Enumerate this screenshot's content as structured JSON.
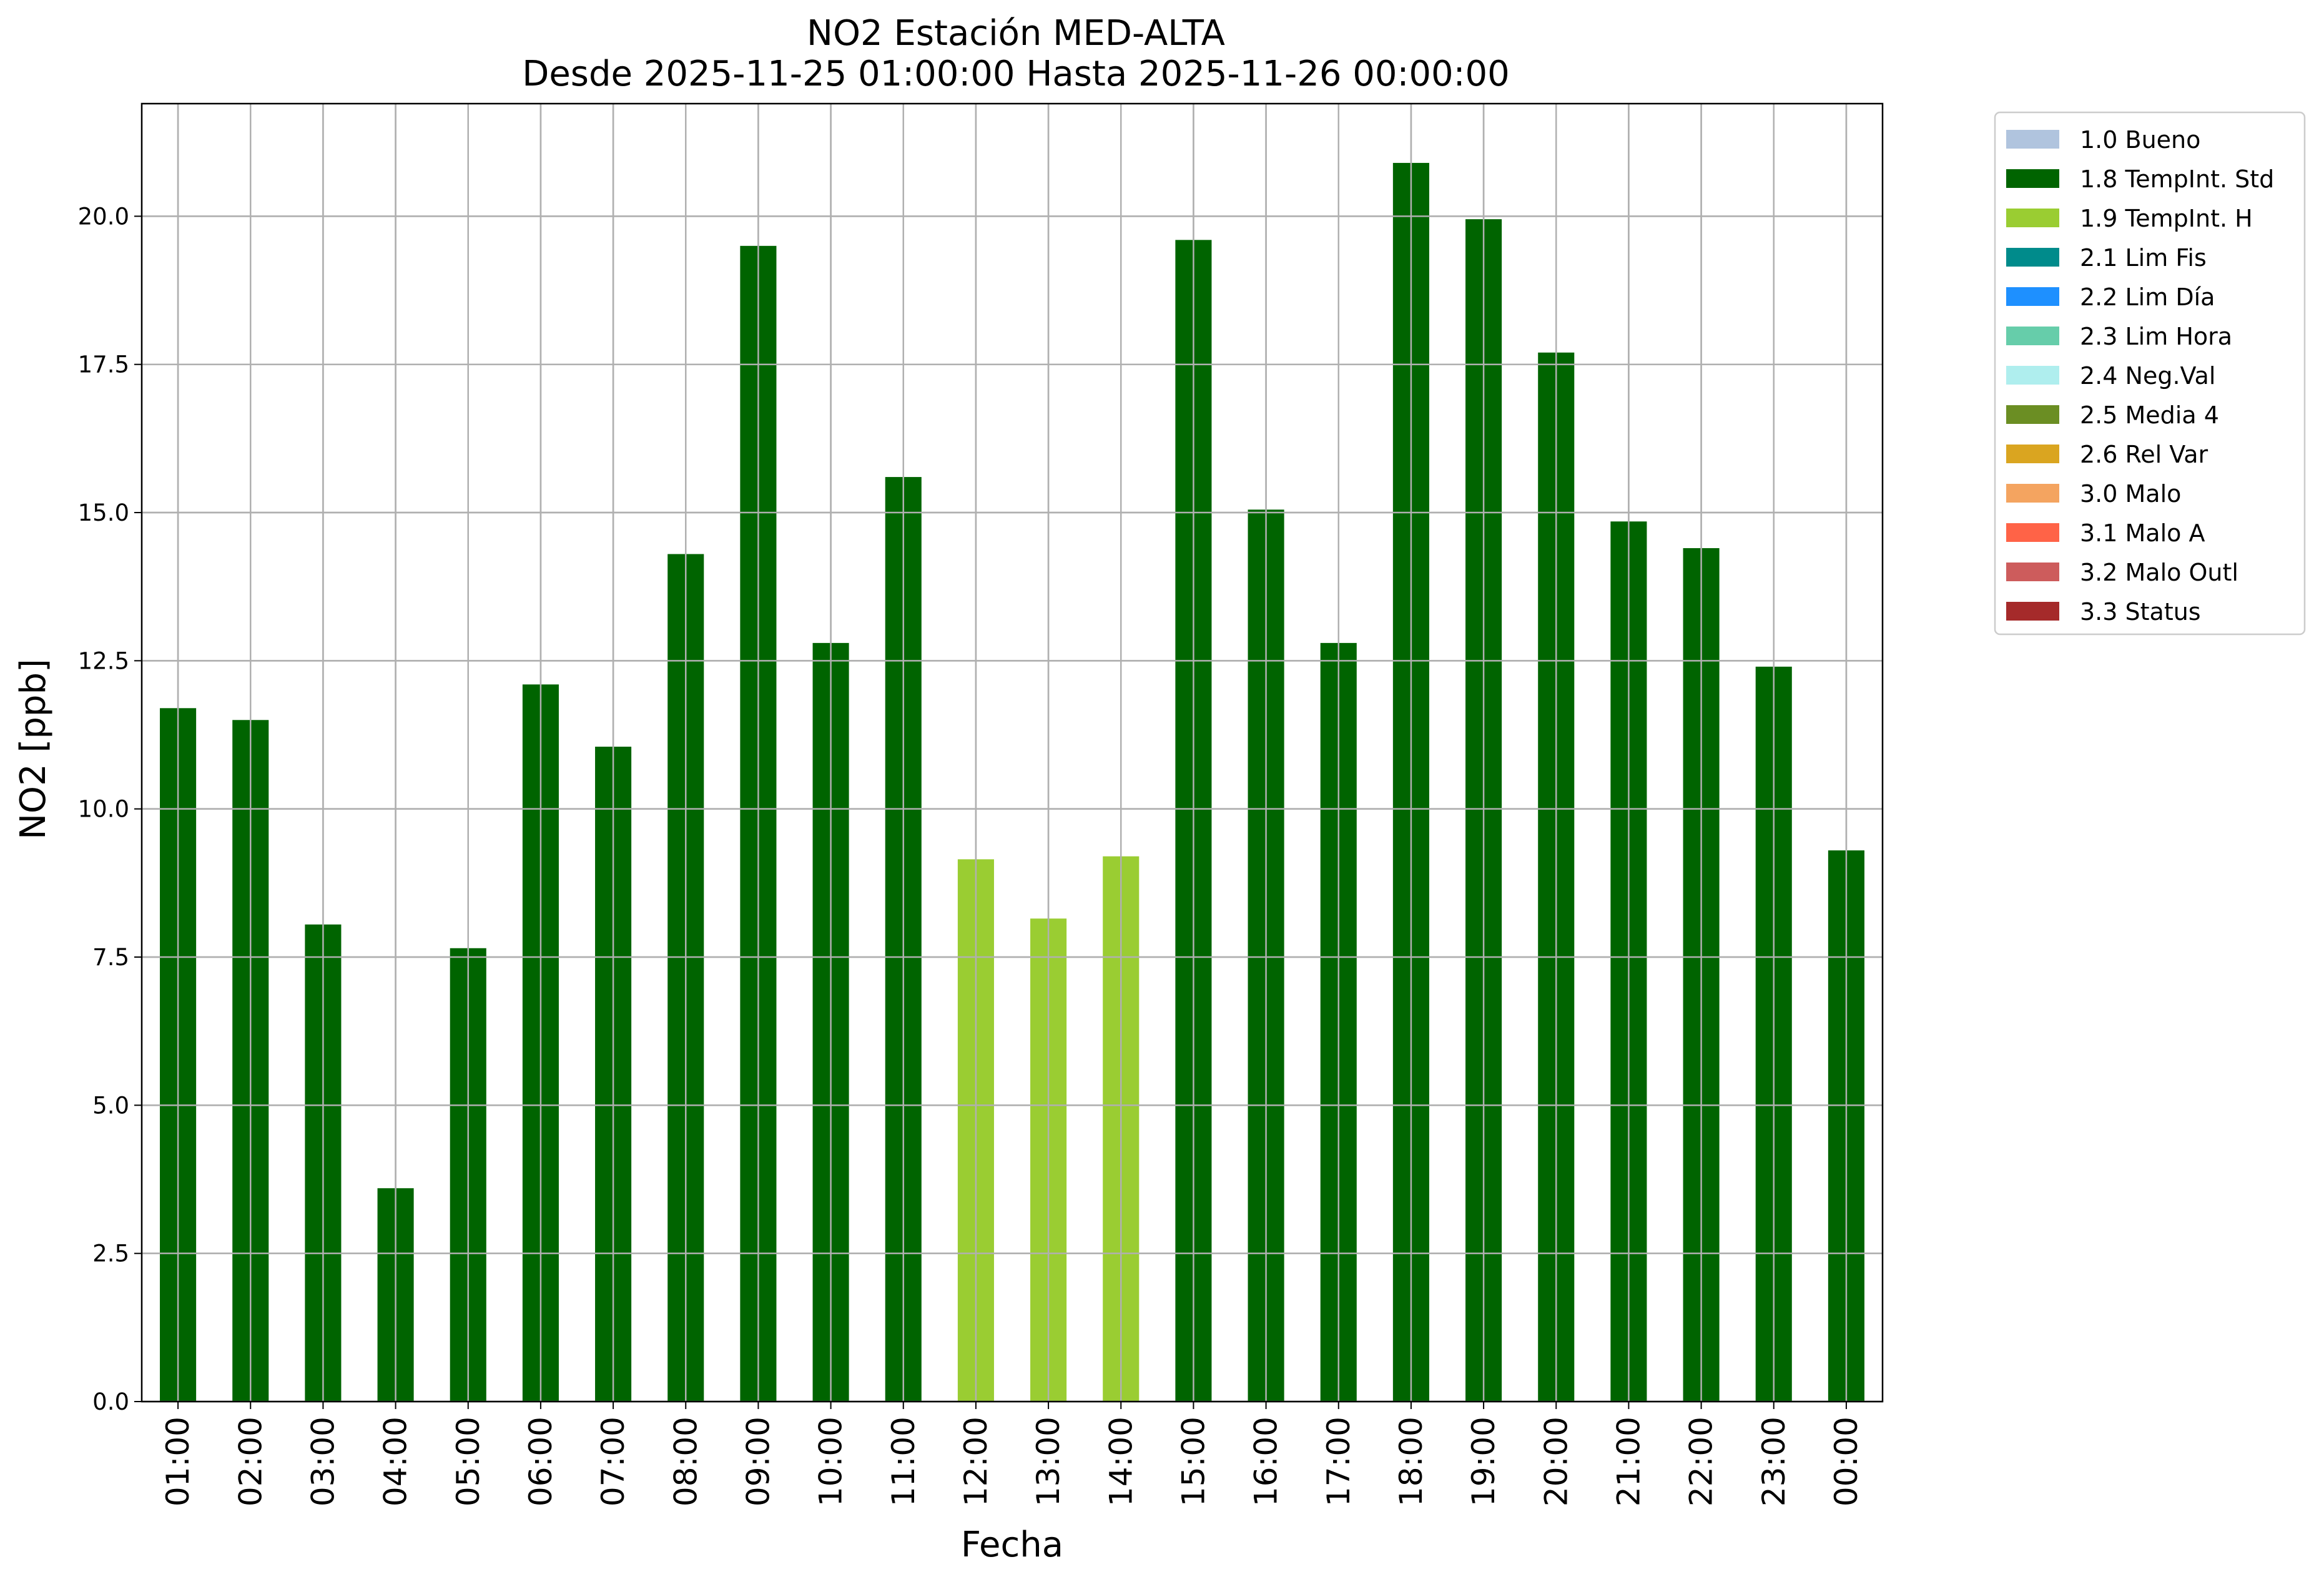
{
  "chart_data": {
    "type": "bar",
    "title": "NO2 Estación MED-ALTA",
    "subtitle": "Desde 2025-11-25 01:00:00 Hasta 2025-11-26 00:00:00",
    "xlabel": "Fecha",
    "ylabel": "NO2 [ppb]",
    "ylim": [
      0,
      21.9
    ],
    "yticks": [
      "0.0",
      "2.5",
      "5.0",
      "7.5",
      "10.0",
      "12.5",
      "15.0",
      "17.5",
      "20.0"
    ],
    "grid": true,
    "legend_position": "outside top-right",
    "categories": [
      "01:00",
      "02:00",
      "03:00",
      "04:00",
      "05:00",
      "06:00",
      "07:00",
      "08:00",
      "09:00",
      "10:00",
      "11:00",
      "12:00",
      "13:00",
      "14:00",
      "15:00",
      "16:00",
      "17:00",
      "18:00",
      "19:00",
      "20:00",
      "21:00",
      "22:00",
      "23:00",
      "00:00"
    ],
    "values": [
      11.7,
      11.5,
      8.05,
      3.6,
      7.65,
      12.1,
      11.05,
      14.3,
      19.5,
      12.8,
      15.6,
      9.15,
      8.15,
      9.2,
      19.6,
      15.05,
      12.8,
      20.9,
      19.95,
      17.7,
      14.85,
      14.4,
      12.4,
      9.3
    ],
    "flags": [
      "1.8",
      "1.8",
      "1.8",
      "1.8",
      "1.8",
      "1.8",
      "1.8",
      "1.8",
      "1.8",
      "1.8",
      "1.8",
      "1.9",
      "1.9",
      "1.9",
      "1.8",
      "1.8",
      "1.8",
      "1.8",
      "1.8",
      "1.8",
      "1.8",
      "1.8",
      "1.8",
      "1.8"
    ],
    "legend": [
      {
        "code": "1.0",
        "label": "1.0 Bueno",
        "color": "#b0c4de"
      },
      {
        "code": "1.8",
        "label": "1.8 TempInt. Std",
        "color": "#006400"
      },
      {
        "code": "1.9",
        "label": "1.9 TempInt. H",
        "color": "#9acd32"
      },
      {
        "code": "2.1",
        "label": "2.1 Lim Fis",
        "color": "#008b8b"
      },
      {
        "code": "2.2",
        "label": "2.2 Lim Día",
        "color": "#1e90ff"
      },
      {
        "code": "2.3",
        "label": "2.3 Lim Hora",
        "color": "#66cdaa"
      },
      {
        "code": "2.4",
        "label": "2.4 Neg.Val",
        "color": "#afeeee"
      },
      {
        "code": "2.5",
        "label": "2.5 Media 4",
        "color": "#6b8e23"
      },
      {
        "code": "2.6",
        "label": "2.6 Rel Var",
        "color": "#daa520"
      },
      {
        "code": "3.0",
        "label": "3.0 Malo",
        "color": "#f4a460"
      },
      {
        "code": "3.1",
        "label": "3.1 Malo A",
        "color": "#ff6347"
      },
      {
        "code": "3.2",
        "label": "3.2 Malo Outl",
        "color": "#cd5c5c"
      },
      {
        "code": "3.3",
        "label": "3.3 Status",
        "color": "#a52a2a"
      }
    ]
  }
}
